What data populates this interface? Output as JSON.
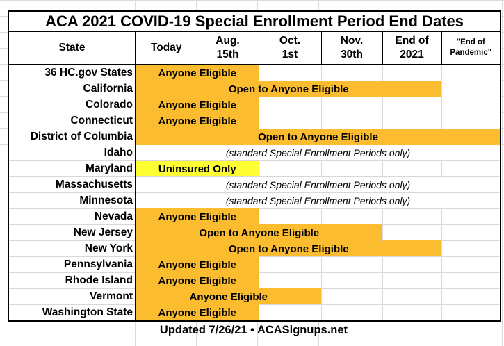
{
  "title": "ACA 2021 COVID-19 Special Enrollment Period End Dates",
  "columns": [
    "State",
    "Today",
    "Aug.\n15th",
    "Oct.\n1st",
    "Nov.\n30th",
    "End of\n2021",
    "\"End of\nPandemic\""
  ],
  "colors": {
    "orange": "#fbbd2f",
    "yellow": "#ffff33"
  },
  "rows": [
    {
      "state": "36 HC.gov States",
      "label": "Anyone Eligible",
      "span": 2,
      "style": "orange"
    },
    {
      "state": "California",
      "label": "Open to Anyone Eligible",
      "span": 5,
      "style": "orange"
    },
    {
      "state": "Colorado",
      "label": "Anyone Eligible",
      "span": 2,
      "style": "orange"
    },
    {
      "state": "Connecticut",
      "label": "Anyone Eligible",
      "span": 2,
      "style": "orange"
    },
    {
      "state": "District of Columbia",
      "label": "Open to Anyone Eligible",
      "span": 6,
      "style": "orange"
    },
    {
      "state": "Idaho",
      "label": "(standard Special Enrollment Periods only)",
      "span": 6,
      "style": "standard"
    },
    {
      "state": "Maryland",
      "label": "Uninsured Only",
      "span": 2,
      "style": "yellow"
    },
    {
      "state": "Massachusetts",
      "label": "(standard Special Enrollment Periods only)",
      "span": 6,
      "style": "standard"
    },
    {
      "state": "Minnesota",
      "label": "(standard Special Enrollment Periods only)",
      "span": 6,
      "style": "standard"
    },
    {
      "state": "Nevada",
      "label": "Anyone Eligible",
      "span": 2,
      "style": "orange"
    },
    {
      "state": "New Jersey",
      "label": "Open to Anyone Eligible",
      "span": 4,
      "style": "orange"
    },
    {
      "state": "New York",
      "label": "Open to Anyone Eligible",
      "span": 5,
      "style": "orange"
    },
    {
      "state": "Pennsylvania",
      "label": "Anyone Eligible",
      "span": 2,
      "style": "orange"
    },
    {
      "state": "Rhode Island",
      "label": "Anyone Eligible",
      "span": 2,
      "style": "orange"
    },
    {
      "state": "Vermont",
      "label": "Anyone Eligible",
      "span": 3,
      "style": "orange"
    },
    {
      "state": "Washington State",
      "label": "Anyone Eligible",
      "span": 2,
      "style": "orange"
    }
  ],
  "footer": "Updated 7/26/21 • ACASignups.net"
}
